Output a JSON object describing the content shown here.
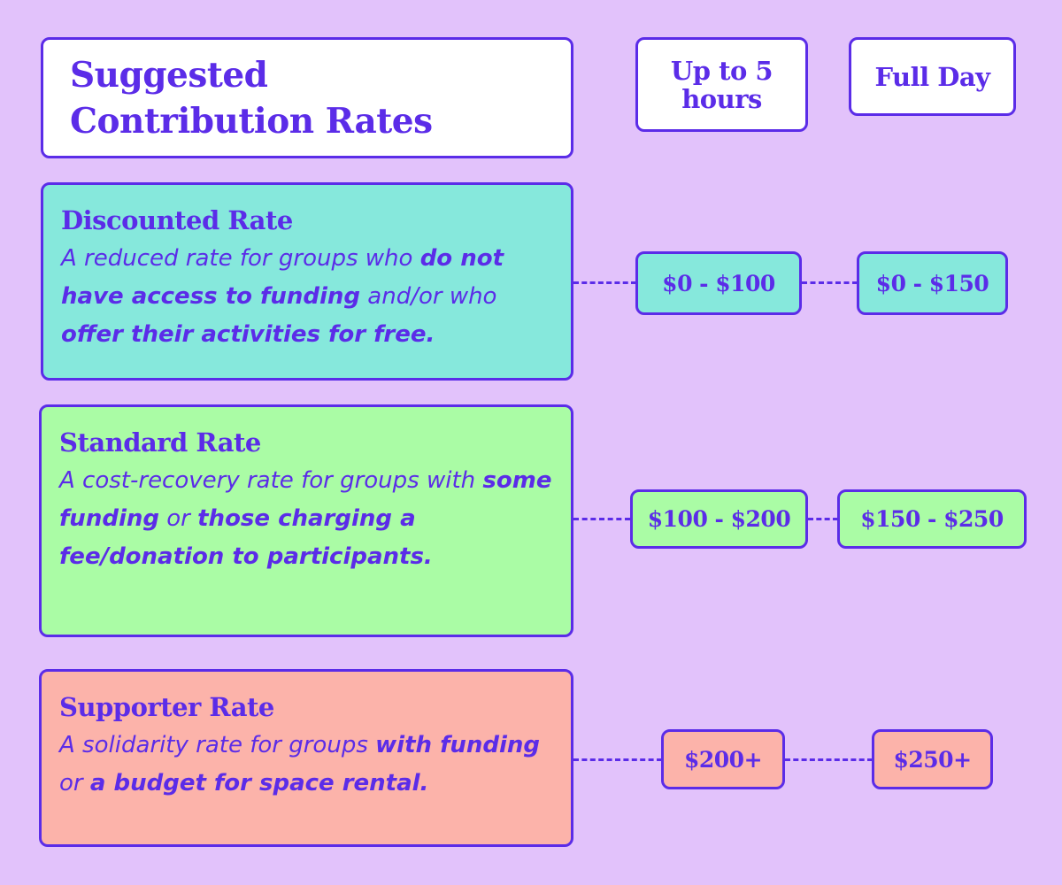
{
  "header": {
    "title_line1": "Suggested",
    "title_line2": "Contribution Rates",
    "col1_line1": "Up to 5",
    "col1_line2": "hours",
    "col2": "Full Day"
  },
  "rates": [
    {
      "title": "Discounted Rate",
      "desc": [
        {
          "t": "A reduced rate for groups who ",
          "b": false
        },
        {
          "t": "do not have access to funding",
          "b": true
        },
        {
          "t": " and/or who ",
          "b": false
        },
        {
          "t": "offer their activities for free.",
          "b": true
        }
      ],
      "price_5h": "$0 - $100",
      "price_day": "$0 - $150",
      "color": "#86e8dc"
    },
    {
      "title": "Standard Rate",
      "desc": [
        {
          "t": "A cost-recovery rate for groups with ",
          "b": false
        },
        {
          "t": "some funding",
          "b": true
        },
        {
          "t": " or ",
          "b": false
        },
        {
          "t": "those charging a fee/donation to participants.",
          "b": true
        }
      ],
      "price_5h": "$100 - $200",
      "price_day": "$150 - $250",
      "color": "#aafca5"
    },
    {
      "title": "Supporter Rate",
      "desc": [
        {
          "t": "A solidarity rate for groups ",
          "b": false
        },
        {
          "t": "with funding",
          "b": true
        },
        {
          "t": " or ",
          "b": false
        },
        {
          "t": "a budget for space rental.",
          "b": true
        }
      ],
      "price_5h": "$200+",
      "price_day": "$250+",
      "color": "#fcb3aa"
    }
  ],
  "colors": {
    "background": "#e2c2fb",
    "accent": "#5b2ce8",
    "header_box": "#ffffff"
  }
}
